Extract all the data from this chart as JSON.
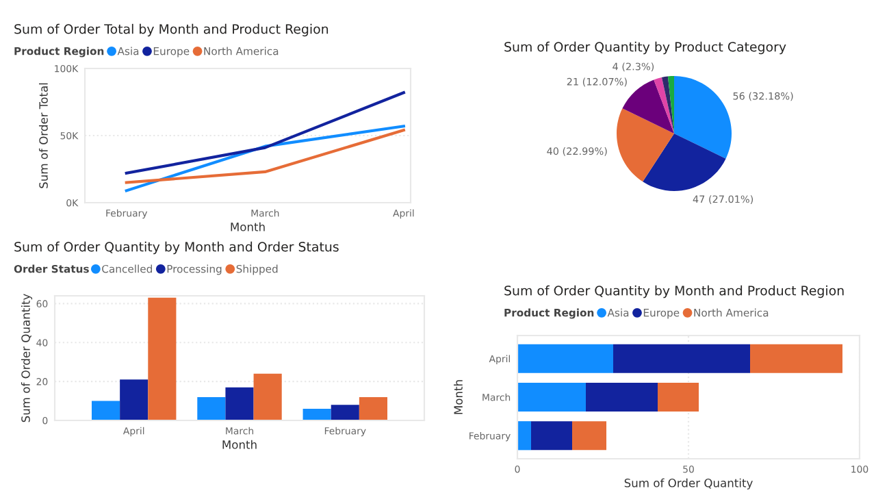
{
  "chart_data": [
    {
      "type": "line",
      "title": "Sum of Order Total by Month and Product Region",
      "legend_title": "Product Region",
      "legend": "top left",
      "xlabel": "Month",
      "ylabel": "Sum of Order Total",
      "categories": [
        "February",
        "March",
        "April"
      ],
      "ylim": [
        0,
        100000
      ],
      "yticks": [
        {
          "value": 0,
          "label": "0K"
        },
        {
          "value": 50000,
          "label": "50K"
        },
        {
          "value": 100000,
          "label": "100K"
        }
      ],
      "grid": "y",
      "marker": "none",
      "line_style": "solid",
      "series": [
        {
          "name": "Asia",
          "color": "#118dff",
          "values": [
            9000,
            42000,
            57000
          ]
        },
        {
          "name": "Europe",
          "color": "#12239e",
          "values": [
            22000,
            41000,
            82000
          ]
        },
        {
          "name": "North America",
          "color": "#e66c37",
          "values": [
            15000,
            23000,
            54000
          ]
        }
      ]
    },
    {
      "type": "pie",
      "title": "Sum of Order Quantity by Product Category",
      "categories": [
        null,
        null,
        null,
        null,
        null,
        null,
        null
      ],
      "values": [
        56,
        47,
        40,
        21,
        4,
        3,
        3
      ],
      "colors": [
        "#118dff",
        "#12239e",
        "#e66c37",
        "#6b007b",
        "#e044a7",
        "#2e2a6b",
        "#1aab40"
      ],
      "value_labels": [
        "56 (32.18%)",
        "47 (27.01%)",
        "40 (22.99%)",
        "21 (12.07%)",
        "4 (2.3%)",
        null,
        null
      ]
    },
    {
      "type": "bar",
      "title": "Sum of Order Quantity by Month and Order Status",
      "legend_title": "Order Status",
      "legend": "top left",
      "xlabel": "Month",
      "ylabel": "Sum of Order Quantity",
      "categories": [
        "April",
        "March",
        "February"
      ],
      "ylim": [
        0,
        64
      ],
      "yticks": [
        0,
        20,
        40,
        60
      ],
      "grid": "y",
      "series": [
        {
          "name": "Cancelled",
          "color": "#118dff",
          "values": [
            10,
            12,
            6
          ]
        },
        {
          "name": "Processing",
          "color": "#12239e",
          "values": [
            21,
            17,
            8
          ]
        },
        {
          "name": "Shipped",
          "color": "#e66c37",
          "values": [
            63,
            24,
            12
          ]
        }
      ]
    },
    {
      "type": "bar",
      "orientation": "horizontal",
      "stacked": true,
      "title": "Sum of Order Quantity by Month and Product Region",
      "legend_title": "Product Region",
      "legend": "top",
      "xlabel": "Sum of Order Quantity",
      "ylabel": "Month",
      "categories": [
        "April",
        "March",
        "February"
      ],
      "xlim": [
        0,
        100
      ],
      "xticks": [
        0,
        50,
        100
      ],
      "grid": "x",
      "series": [
        {
          "name": "Asia",
          "color": "#118dff",
          "values": [
            28,
            20,
            4
          ]
        },
        {
          "name": "Europe",
          "color": "#12239e",
          "values": [
            40,
            21,
            12
          ]
        },
        {
          "name": "North America",
          "color": "#e66c37",
          "values": [
            27,
            12,
            10
          ]
        }
      ]
    }
  ]
}
